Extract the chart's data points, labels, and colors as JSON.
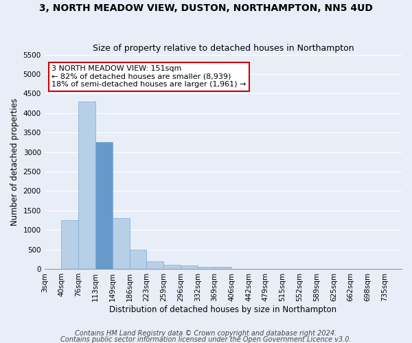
{
  "title": "3, NORTH MEADOW VIEW, DUSTON, NORTHAMPTON, NN5 4UD",
  "subtitle": "Size of property relative to detached houses in Northampton",
  "xlabel": "Distribution of detached houses by size in Northampton",
  "ylabel": "Number of detached properties",
  "footnote1": "Contains HM Land Registry data © Crown copyright and database right 2024.",
  "footnote2": "Contains public sector information licensed under the Open Government Licence v3.0.",
  "categories": [
    "3sqm",
    "40sqm",
    "76sqm",
    "113sqm",
    "149sqm",
    "186sqm",
    "223sqm",
    "259sqm",
    "296sqm",
    "332sqm",
    "369sqm",
    "406sqm",
    "442sqm",
    "479sqm",
    "515sqm",
    "552sqm",
    "589sqm",
    "625sqm",
    "662sqm",
    "698sqm",
    "735sqm"
  ],
  "values": [
    0,
    1250,
    4300,
    3250,
    1300,
    500,
    200,
    100,
    80,
    60,
    50,
    0,
    0,
    0,
    0,
    0,
    0,
    0,
    0,
    0,
    0
  ],
  "highlight_index": 3,
  "bar_color_normal": "#b8cfe8",
  "bar_color_highlight": "#6699cc",
  "bar_edge_color": "#7aaad0",
  "annotation_text": "3 NORTH MEADOW VIEW: 151sqm\n← 82% of detached houses are smaller (8,939)\n18% of semi-detached houses are larger (1,961) →",
  "annotation_box_color": "#ffffff",
  "annotation_box_edge": "#cc0000",
  "ylim": [
    0,
    5500
  ],
  "yticks": [
    0,
    500,
    1000,
    1500,
    2000,
    2500,
    3000,
    3500,
    4000,
    4500,
    5000,
    5500
  ],
  "background_color": "#e8eef8",
  "plot_bg_color": "#e8eef8",
  "grid_color": "#ffffff",
  "title_fontsize": 10,
  "subtitle_fontsize": 9,
  "axis_label_fontsize": 8.5,
  "tick_fontsize": 7.5,
  "annotation_fontsize": 8,
  "footnote_fontsize": 7
}
